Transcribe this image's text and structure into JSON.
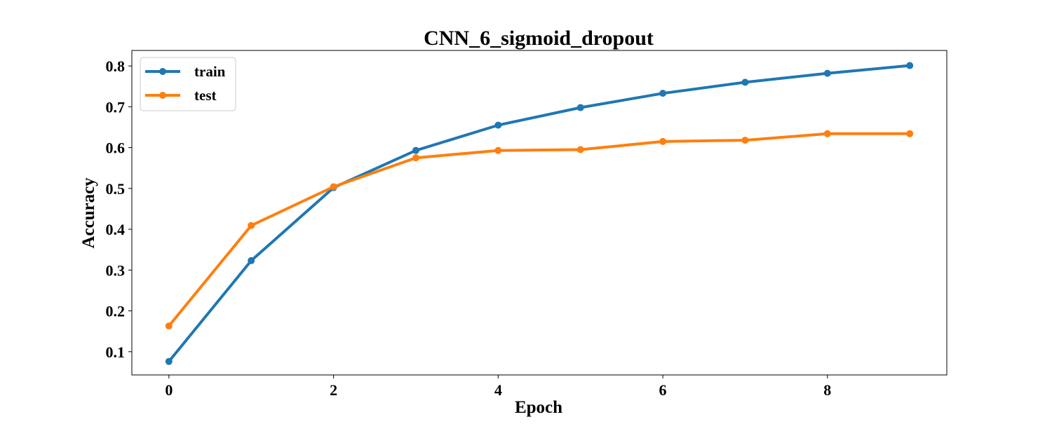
{
  "chart_data": {
    "type": "line",
    "title": "CNN_6_sigmoid_dropout",
    "xlabel": "Epoch",
    "ylabel": "Accuracy",
    "xlim": [
      -0.45,
      9.45
    ],
    "ylim": [
      0.043,
      0.838
    ],
    "xticks": [
      0,
      2,
      4,
      6,
      8
    ],
    "yticks": [
      0.1,
      0.2,
      0.3,
      0.4,
      0.5,
      0.6,
      0.7,
      0.8
    ],
    "grid": false,
    "legend_position": "upper left",
    "x": [
      0,
      1,
      2,
      3,
      4,
      5,
      6,
      7,
      8,
      9
    ],
    "series": [
      {
        "name": "train",
        "color": "#1f77b4",
        "marker": "circle",
        "values": [
          0.076,
          0.323,
          0.502,
          0.593,
          0.655,
          0.698,
          0.733,
          0.76,
          0.782,
          0.801
        ]
      },
      {
        "name": "test",
        "color": "#ff7f0e",
        "marker": "circle",
        "values": [
          0.163,
          0.409,
          0.504,
          0.575,
          0.593,
          0.595,
          0.615,
          0.618,
          0.634,
          0.634
        ]
      }
    ]
  }
}
